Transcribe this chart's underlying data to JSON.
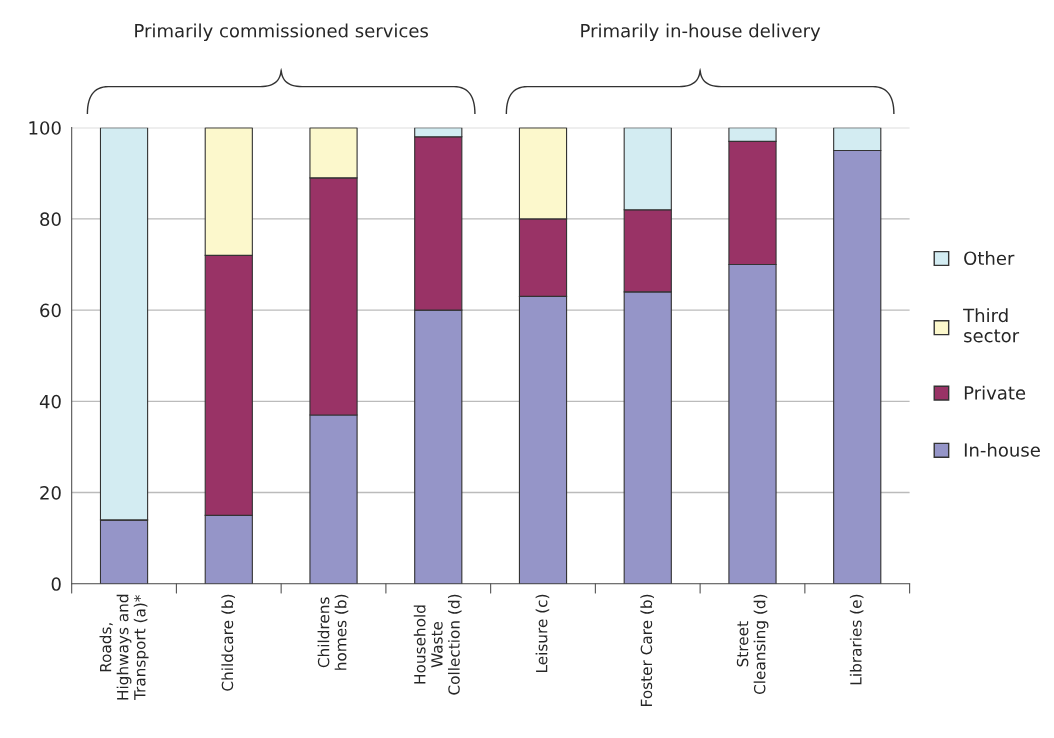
{
  "chart_data": {
    "type": "bar",
    "stacked": true,
    "categories": [
      "Roads,\nHighways and\nTransport (a)*",
      "Childcare (b)",
      "Childrens\nhomes (b)",
      "Household\nWaste\nCollection (d)",
      "Leisure (c)",
      "Foster Care (b)",
      "Street\nCleansing (d)",
      "Libraries (e)"
    ],
    "series": [
      {
        "name": "In-house",
        "color": "#9595c8",
        "values": [
          14,
          15,
          37,
          60,
          63,
          64,
          70,
          95
        ]
      },
      {
        "name": "Private",
        "color": "#993366",
        "values": [
          null,
          57,
          52,
          38,
          17,
          18,
          27,
          null
        ]
      },
      {
        "name": "Third\nsector",
        "color": "#fcf8cc",
        "values": [
          null,
          28,
          11,
          null,
          20,
          null,
          null,
          null
        ]
      },
      {
        "name": "Other",
        "color": "#d3ecf2",
        "values": [
          86,
          null,
          null,
          2,
          null,
          18,
          3,
          5
        ]
      }
    ],
    "ylim": [
      0,
      100
    ],
    "yticks": [
      0,
      20,
      40,
      60,
      80,
      100
    ],
    "grid": "y",
    "legend": "right",
    "annotations": [
      "Primarily commissioned services",
      "Primarily in-house delivery"
    ]
  }
}
